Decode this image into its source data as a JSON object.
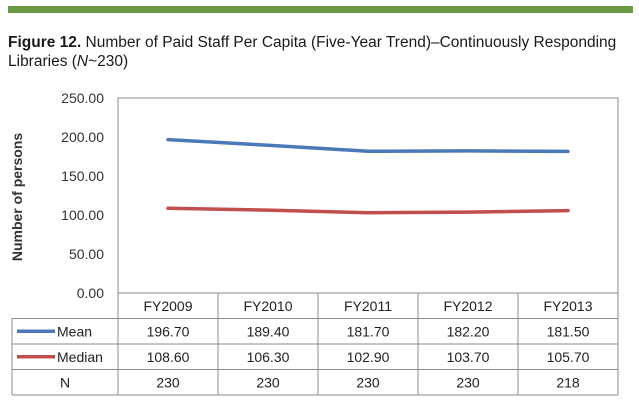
{
  "figure": {
    "label": "Figure 12.",
    "title_part1": "Number of Paid Staff Per Capita (Five-Year Trend)–Continuously Responding Libraries (",
    "title_n": "N",
    "title_part2": "~230)"
  },
  "colors": {
    "rule": "#6b9a45",
    "mean": "#4a78b8",
    "median": "#c0504d"
  },
  "chart_data": {
    "type": "line",
    "ylabel": "Number of persons",
    "ylim": [
      0,
      250
    ],
    "yticks": [
      "0.00",
      "50.00",
      "100.00",
      "150.00",
      "200.00",
      "250.00"
    ],
    "categories": [
      "FY2009",
      "FY2010",
      "FY2011",
      "FY2012",
      "FY2013"
    ],
    "series": [
      {
        "name": "Mean",
        "color": "#4a78b8",
        "values": [
          196.7,
          189.4,
          181.7,
          182.2,
          181.5
        ],
        "labels": [
          "196.70",
          "189.40",
          "181.70",
          "182.20",
          "181.50"
        ]
      },
      {
        "name": "Median",
        "color": "#c0504d",
        "values": [
          108.6,
          106.3,
          102.9,
          103.7,
          105.7
        ],
        "labels": [
          "108.60",
          "106.30",
          "102.90",
          "103.70",
          "105.70"
        ]
      }
    ],
    "table_extra_row": {
      "name": "N",
      "values": [
        "230",
        "230",
        "230",
        "230",
        "218"
      ]
    },
    "grid": false,
    "legend": "data-table"
  }
}
